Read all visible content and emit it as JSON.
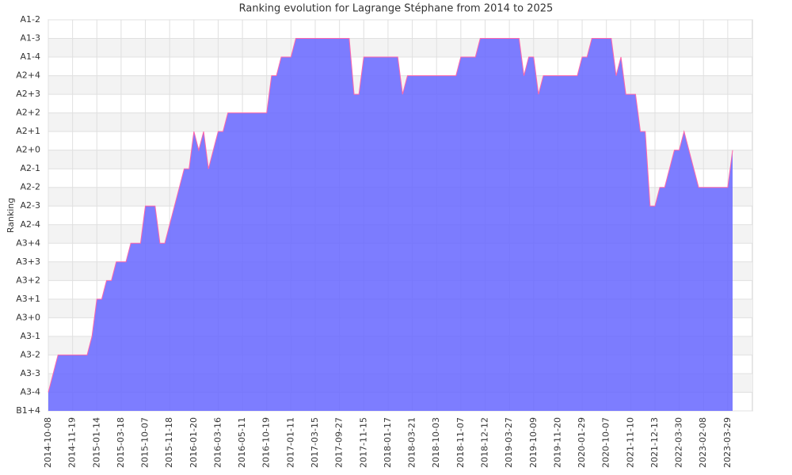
{
  "chart_data": {
    "type": "area",
    "title": "Ranking evolution for Lagrange Stéphane from 2014 to 2025",
    "y_label": "Ranking",
    "categories": [
      "2014-10-08",
      null,
      null,
      null,
      null,
      "2014-11-19",
      null,
      null,
      null,
      null,
      "2015-01-14",
      null,
      null,
      null,
      null,
      "2015-03-18",
      null,
      null,
      null,
      null,
      "2015-10-07",
      null,
      null,
      null,
      null,
      "2015-11-18",
      null,
      null,
      null,
      null,
      "2016-01-20",
      null,
      null,
      null,
      null,
      "2016-03-16",
      null,
      null,
      null,
      null,
      "2016-05-11",
      null,
      null,
      null,
      null,
      "2016-10-19",
      null,
      null,
      null,
      null,
      "2017-01-11",
      null,
      null,
      null,
      null,
      "2017-03-15",
      null,
      null,
      null,
      null,
      "2017-09-27",
      null,
      null,
      null,
      null,
      "2017-11-15",
      null,
      null,
      null,
      null,
      "2018-01-17",
      null,
      null,
      null,
      null,
      "2018-03-21",
      null,
      null,
      null,
      null,
      "2018-10-03",
      null,
      null,
      null,
      null,
      "2018-11-07",
      null,
      null,
      null,
      null,
      "2018-12-12",
      null,
      null,
      null,
      null,
      "2019-03-27",
      null,
      null,
      null,
      null,
      "2019-10-09",
      null,
      null,
      null,
      null,
      "2019-11-20",
      null,
      null,
      null,
      null,
      "2020-01-29",
      null,
      null,
      null,
      null,
      "2020-10-07",
      null,
      null,
      null,
      null,
      "2021-11-10",
      null,
      null,
      null,
      null,
      "2021-12-13",
      null,
      null,
      null,
      null,
      "2022-03-30",
      null,
      null,
      null,
      null,
      "2023-02-08",
      null,
      null,
      null,
      null,
      "2023-03-29",
      null
    ],
    "values": [
      1,
      2,
      3,
      3,
      3,
      3,
      3,
      3,
      3,
      4,
      6,
      6,
      7,
      7,
      8,
      8,
      8,
      9,
      9,
      9,
      11,
      11,
      11,
      9,
      9,
      10,
      11,
      12,
      13,
      13,
      15,
      14,
      15,
      13,
      14,
      15,
      15,
      16,
      16,
      16,
      16,
      16,
      16,
      16,
      16,
      16,
      18,
      18,
      19,
      19,
      19,
      20,
      20,
      20,
      20,
      20,
      20,
      20,
      20,
      20,
      20,
      20,
      20,
      17,
      17,
      19,
      19,
      19,
      19,
      19,
      19,
      19,
      19,
      17,
      18,
      18,
      18,
      18,
      18,
      18,
      18,
      18,
      18,
      18,
      18,
      19,
      19,
      19,
      19,
      20,
      20,
      20,
      20,
      20,
      20,
      20,
      20,
      20,
      18,
      19,
      19,
      17,
      18,
      18,
      18,
      18,
      18,
      18,
      18,
      18,
      19,
      19,
      20,
      20,
      20,
      20,
      20,
      18,
      19,
      17,
      17,
      17,
      15,
      15,
      11,
      11,
      12,
      12,
      13,
      14,
      14,
      15,
      14,
      13,
      12,
      12,
      12,
      12,
      12,
      12,
      12,
      14
    ],
    "color": "#6666ff",
    "line_color": "#ff66aa",
    "ylim": [
      0,
      21
    ],
    "yticks": [
      {
        "value": 0,
        "label": "B1+4"
      },
      {
        "value": 1,
        "label": "A3-4"
      },
      {
        "value": 2,
        "label": "A3-3"
      },
      {
        "value": 3,
        "label": "A3-2"
      },
      {
        "value": 4,
        "label": "A3-1"
      },
      {
        "value": 5,
        "label": "A3+0"
      },
      {
        "value": 6,
        "label": "A3+1"
      },
      {
        "value": 7,
        "label": "A3+2"
      },
      {
        "value": 8,
        "label": "A3+3"
      },
      {
        "value": 9,
        "label": "A3+4"
      },
      {
        "value": 10,
        "label": "A2-4"
      },
      {
        "value": 11,
        "label": "A2-3"
      },
      {
        "value": 12,
        "label": "A2-2"
      },
      {
        "value": 13,
        "label": "A2-1"
      },
      {
        "value": 14,
        "label": "A2+0"
      },
      {
        "value": 15,
        "label": "A2+1"
      },
      {
        "value": 16,
        "label": "A2+2"
      },
      {
        "value": 17,
        "label": "A2+3"
      },
      {
        "value": 18,
        "label": "A2+4"
      },
      {
        "value": 19,
        "label": "A1-4"
      },
      {
        "value": 20,
        "label": "A1-3"
      },
      {
        "value": 21,
        "label": "A1-2"
      }
    ],
    "grid": true
  }
}
